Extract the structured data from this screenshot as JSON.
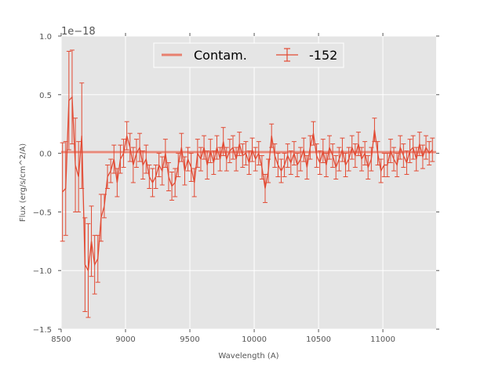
{
  "chart_data": {
    "type": "line",
    "title": "",
    "xlabel": "Wavelength (A)",
    "ylabel": "Flux (erg/s/cm^2/A)",
    "offset_text": "1e−18",
    "xlim": [
      8500,
      11414
    ],
    "ylim": [
      -1.5,
      1.0
    ],
    "xticks": [
      8500,
      9000,
      9500,
      10000,
      10500,
      11000
    ],
    "xtick_labels": [
      "8500",
      "9000",
      "9500",
      "10000",
      "10500",
      "11000"
    ],
    "yticks": [
      1.0,
      0.5,
      0.0,
      -0.5,
      -1.0,
      -1.5
    ],
    "ytick_labels": [
      "1.0",
      "0.5",
      "0.0",
      "−0.5",
      "−1.0",
      "−1.5"
    ],
    "grid": true,
    "legend_placement": "top-center",
    "colors": {
      "background": "#e5e5e5",
      "series": "#e24a33",
      "contam": "#e8806f",
      "grid": "#ffffff"
    },
    "series": [
      {
        "name": "Contam.",
        "style": "thick-line",
        "x": [
          8500,
          11414
        ],
        "y": [
          0.01,
          0.01
        ]
      },
      {
        "name": "-152",
        "style": "errorbar",
        "x0": 8510,
        "dx": 25,
        "y": [
          -0.33,
          -0.3,
          0.45,
          0.48,
          -0.1,
          -0.2,
          0.15,
          -0.95,
          -1.0,
          -0.75,
          -0.95,
          -0.9,
          -0.55,
          -0.45,
          -0.2,
          -0.15,
          -0.05,
          -0.25,
          -0.05,
          0.0,
          0.15,
          0.05,
          -0.1,
          0.0,
          0.05,
          -0.1,
          -0.05,
          -0.2,
          -0.25,
          -0.2,
          -0.1,
          -0.15,
          0.0,
          -0.2,
          -0.28,
          -0.25,
          -0.1,
          0.05,
          -0.15,
          -0.05,
          -0.12,
          -0.25,
          0.0,
          -0.05,
          0.05,
          -0.1,
          0.02,
          -0.08,
          0.05,
          -0.05,
          0.1,
          -0.05,
          0.02,
          0.05,
          -0.05,
          0.08,
          -0.02,
          0.0,
          -0.08,
          0.03,
          -0.05,
          0.0,
          -0.12,
          -0.3,
          -0.15,
          0.15,
          -0.02,
          -0.1,
          -0.15,
          -0.1,
          -0.02,
          -0.08,
          0.0,
          -0.1,
          -0.05,
          0.03,
          -0.12,
          0.05,
          0.17,
          -0.02,
          -0.08,
          0.02,
          -0.1,
          0.05,
          -0.02,
          -0.12,
          -0.05,
          0.03,
          -0.1,
          -0.05,
          0.05,
          -0.02,
          0.08,
          -0.05,
          0.0,
          -0.12,
          -0.05,
          0.2,
          0.0,
          -0.15,
          -0.1,
          -0.1,
          0.02,
          -0.05,
          -0.1,
          0.05,
          -0.02,
          -0.08,
          0.02,
          0.05,
          -0.05,
          0.08,
          -0.03,
          0.05,
          0.0,
          0.03
        ],
        "err": [
          0.42,
          0.4,
          0.42,
          0.4,
          0.4,
          0.3,
          0.45,
          0.4,
          0.4,
          0.3,
          0.25,
          0.2,
          0.2,
          0.1,
          0.1,
          0.1,
          0.12,
          0.12,
          0.12,
          0.12,
          0.12,
          0.12,
          0.15,
          0.12,
          0.12,
          0.12,
          0.12,
          0.1,
          0.12,
          0.1,
          0.1,
          0.12,
          0.12,
          0.12,
          0.12,
          0.12,
          0.1,
          0.12,
          0.12,
          0.1,
          0.12,
          0.12,
          0.12,
          0.1,
          0.1,
          0.12,
          0.1,
          0.1,
          0.1,
          0.1,
          0.12,
          0.1,
          0.1,
          0.1,
          0.1,
          0.1,
          0.1,
          0.1,
          0.1,
          0.1,
          0.1,
          0.1,
          0.1,
          0.12,
          0.1,
          0.1,
          0.1,
          0.1,
          0.1,
          0.1,
          0.1,
          0.1,
          0.1,
          0.1,
          0.1,
          0.1,
          0.1,
          0.1,
          0.1,
          0.1,
          0.1,
          0.1,
          0.1,
          0.1,
          0.1,
          0.1,
          0.1,
          0.1,
          0.1,
          0.1,
          0.1,
          0.1,
          0.1,
          0.1,
          0.1,
          0.1,
          0.1,
          0.1,
          0.1,
          0.1,
          0.1,
          0.1,
          0.1,
          0.1,
          0.1,
          0.1,
          0.1,
          0.1,
          0.1,
          0.1,
          0.1,
          0.1,
          0.1,
          0.1,
          0.1,
          0.1
        ]
      }
    ]
  }
}
